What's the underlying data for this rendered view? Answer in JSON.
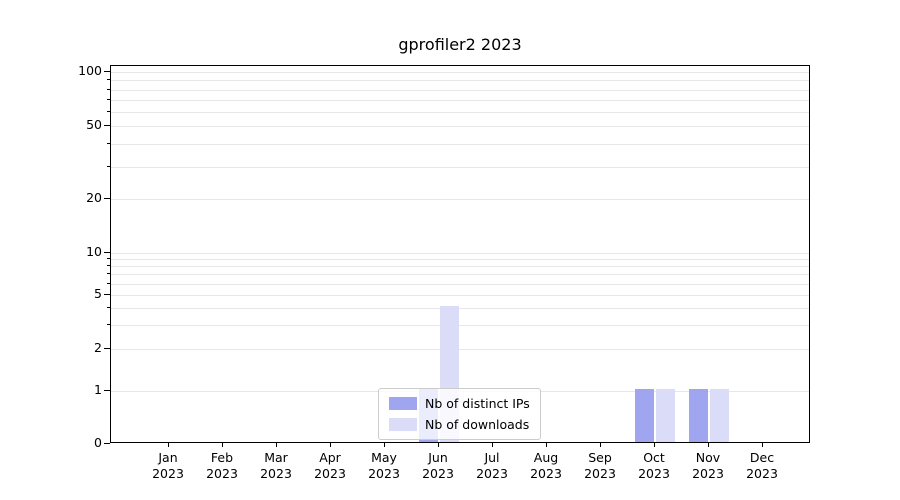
{
  "title": "gprofiler2 2023",
  "legend": {
    "items": [
      {
        "label": "Nb of distinct IPs",
        "color": "#a0a5ef"
      },
      {
        "label": "Nb of downloads",
        "color": "#dadcf8"
      }
    ]
  },
  "chart_data": {
    "type": "bar",
    "title": "gprofiler2 2023",
    "categories": [
      "Jan 2023",
      "Feb 2023",
      "Mar 2023",
      "Apr 2023",
      "May 2023",
      "Jun 2023",
      "Jul 2023",
      "Aug 2023",
      "Sep 2023",
      "Oct 2023",
      "Nov 2023",
      "Dec 2023"
    ],
    "series": [
      {
        "name": "Nb of distinct IPs",
        "color": "#a0a5ef",
        "values": [
          0,
          0,
          0,
          0,
          0,
          1,
          0,
          0,
          0,
          1,
          1,
          0
        ]
      },
      {
        "name": "Nb of downloads",
        "color": "#dadcf8",
        "values": [
          0,
          0,
          0,
          0,
          0,
          4,
          0,
          0,
          0,
          1,
          1,
          0
        ]
      }
    ],
    "yscale": "symlog",
    "ylim": [
      0,
      110
    ],
    "yticks": [
      0,
      1,
      2,
      5,
      10,
      20,
      50,
      100
    ],
    "minor_gridlines": [
      1,
      2,
      3,
      4,
      5,
      6,
      7,
      8,
      9,
      10,
      20,
      30,
      40,
      50,
      60,
      70,
      80,
      90,
      100
    ],
    "grid": true,
    "legend_position": "lower center",
    "xlabel": "",
    "ylabel": ""
  }
}
